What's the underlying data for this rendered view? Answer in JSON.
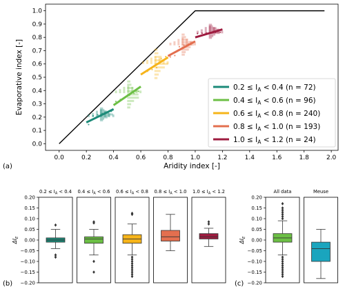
{
  "panel_labels": {
    "a": "(a)",
    "b": "(b)",
    "c": "(c)"
  },
  "colors": {
    "class1": "#1b8a78",
    "class2": "#6cbf45",
    "class3": "#f6b41a",
    "class4": "#e36f4f",
    "class5": "#9e1b3f",
    "meuse": "#1aa5be",
    "limit": "#000000"
  },
  "chart_data": [
    {
      "id": "a",
      "type": "scatter",
      "xlabel": "Aridity index [-]",
      "ylabel": "Evaporative index [-]",
      "xlim": [
        -0.1,
        2.05
      ],
      "ylim": [
        -0.05,
        1.05
      ],
      "xticks": [
        "0.0",
        "0.2",
        "0.4",
        "0.6",
        "0.8",
        "1.0",
        "1.2",
        "1.4",
        "1.6",
        "1.8",
        "2.0"
      ],
      "yticks": [
        "0.0",
        "0.1",
        "0.2",
        "0.3",
        "0.4",
        "0.5",
        "0.6",
        "0.7",
        "0.8",
        "0.9",
        "1.0"
      ],
      "limit_line": {
        "x": [
          0,
          1,
          1.95
        ],
        "y": [
          0,
          1,
          1
        ]
      },
      "legend_position": "lower-right",
      "series": [
        {
          "name": "0.2 ≤ I_A < 0.4 (n = 72)",
          "label_main": "0.2 ≤ I",
          "label_sub": "A",
          "label_rest": " < 0.4 (n = 72)",
          "color_key": "class1",
          "fit": [
            [
              0.2,
              0.16
            ],
            [
              0.4,
              0.26
            ]
          ],
          "hist_x": 0.3,
          "hist_y": [
            0.17,
            0.27
          ],
          "vhist_y": 0.2
        },
        {
          "name": "0.4 ≤ I_A < 0.6 (n = 96)",
          "label_main": "0.4 ≤ I",
          "label_sub": "A",
          "label_rest": " < 0.6 (n = 96)",
          "color_key": "class2",
          "fit": [
            [
              0.4,
              0.29
            ],
            [
              0.6,
              0.43
            ]
          ],
          "hist_x": 0.5,
          "hist_y": [
            0.26,
            0.48
          ],
          "vhist_y": 0.38
        },
        {
          "name": "0.6 ≤ I_A < 0.8 (n = 240)",
          "label_main": "0.6 ≤ I",
          "label_sub": "A",
          "label_rest": " < 0.8 (n = 240)",
          "color_key": "class3",
          "fit": [
            [
              0.6,
              0.52
            ],
            [
              0.8,
              0.65
            ]
          ],
          "hist_x": 0.7,
          "hist_y": [
            0.48,
            0.72
          ],
          "vhist_y": 0.6
        },
        {
          "name": "0.8 ≤ I_A < 1.0 (n = 193)",
          "label_main": "0.8 ≤ I",
          "label_sub": "A",
          "label_rest": " < 1.0 (n = 193)",
          "color_key": "class4",
          "fit": [
            [
              0.8,
              0.66
            ],
            [
              1.0,
              0.77
            ]
          ],
          "hist_x": 0.9,
          "hist_y": [
            0.66,
            0.83
          ],
          "vhist_y": 0.74
        },
        {
          "name": "1.0 ≤ I_A < 1.2 (n = 24)",
          "label_main": "1.0 ≤ I",
          "label_sub": "A",
          "label_rest": " < 1.2 (n = 24)",
          "color_key": "class5",
          "fit": [
            [
              1.0,
              0.8
            ],
            [
              1.2,
              0.86
            ]
          ],
          "hist_x": 1.1,
          "hist_y": [
            0.79,
            0.9
          ],
          "vhist_y": 0.83
        }
      ]
    },
    {
      "id": "b",
      "type": "box",
      "ylabel": "ΔI_E",
      "ylim": [
        -0.2,
        0.2
      ],
      "yticks": [
        "0.20",
        "0.15",
        "0.10",
        "0.05",
        "0.00",
        "−0.05",
        "−0.10",
        "−0.15",
        "−0.20"
      ],
      "boxes": [
        {
          "title_main": "0.2 ≤ I",
          "title_sub": "A",
          "title_rest": " < 0.4",
          "color_key": "class1",
          "whisker_low": -0.04,
          "q1": -0.01,
          "median": 0.0,
          "q3": 0.01,
          "whisker_high": 0.05,
          "outliers": [
            0.07,
            -0.07,
            -0.08
          ]
        },
        {
          "title_main": "0.4 ≤ I",
          "title_sub": "A",
          "title_rest": " < 0.6",
          "color_key": "class2",
          "whisker_low": -0.07,
          "q1": -0.015,
          "median": 0.005,
          "q3": 0.015,
          "whisker_high": 0.05,
          "outliers": [
            0.08,
            0.085,
            -0.1,
            -0.15
          ]
        },
        {
          "title_main": "0.6 ≤ I",
          "title_sub": "A",
          "title_rest": " < 0.8",
          "color_key": "class3",
          "whisker_low": -0.07,
          "q1": -0.015,
          "median": 0.005,
          "q3": 0.025,
          "whisker_high": 0.075,
          "outliers": [
            0.12,
            0.125,
            -0.08,
            -0.09,
            -0.1,
            -0.11,
            -0.12,
            -0.13,
            -0.14,
            -0.15,
            -0.16,
            -0.17
          ]
        },
        {
          "title_main": "0.8 ≤ I",
          "title_sub": "A",
          "title_rest": " < 1.0",
          "color_key": "class4",
          "whisker_low": -0.05,
          "q1": -0.005,
          "median": 0.015,
          "q3": 0.045,
          "whisker_high": 0.12,
          "outliers": []
        },
        {
          "title_main": "1.0 ≤ I",
          "title_sub": "A",
          "title_rest": " < 1.2",
          "color_key": "class5",
          "whisker_low": -0.03,
          "q1": 0.005,
          "median": 0.015,
          "q3": 0.03,
          "whisker_high": 0.055,
          "outliers": [
            0.075,
            0.085
          ]
        }
      ]
    },
    {
      "id": "c",
      "type": "box",
      "ylabel": "ΔI_E",
      "ylim": [
        -0.2,
        0.2
      ],
      "yticks": [
        "0.20",
        "0.15",
        "0.10",
        "0.05",
        "0.00",
        "−0.05",
        "−0.10",
        "−0.15",
        "−0.20"
      ],
      "boxes": [
        {
          "title_main": "All data",
          "title_sub": "",
          "title_rest": "",
          "color_key": "class2",
          "whisker_low": -0.07,
          "q1": -0.01,
          "median": 0.01,
          "q3": 0.03,
          "whisker_high": 0.09,
          "outliers": [
            0.1,
            0.11,
            0.12,
            0.13,
            0.14,
            0.15,
            0.17,
            -0.08,
            -0.09,
            -0.1,
            -0.11,
            -0.12,
            -0.13,
            -0.14,
            -0.15,
            -0.16,
            -0.17
          ]
        },
        {
          "title_main": "Meuse",
          "title_sub": "",
          "title_rest": "",
          "color_key": "meuse",
          "whisker_low": -0.18,
          "q1": -0.1,
          "median": -0.04,
          "q3": -0.01,
          "whisker_high": 0.05,
          "outliers": []
        }
      ]
    }
  ]
}
